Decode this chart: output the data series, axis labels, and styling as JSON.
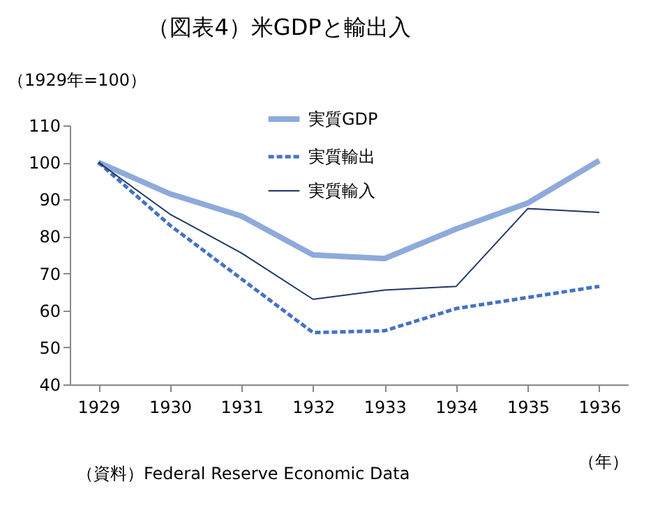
{
  "chart_data": {
    "type": "line",
    "title": "（図表4）米GDPと輸出入",
    "ylabel": "（1929年=100）",
    "xlabel": "（年）",
    "annotations": [
      "（資料）Federal Reserve Economic Data"
    ],
    "categories": [
      "1929",
      "1930",
      "1931",
      "1932",
      "1933",
      "1934",
      "1935",
      "1936"
    ],
    "series": [
      {
        "name": "実質GDP",
        "color": "#8eaadb",
        "line_style": "solid",
        "values": [
          100,
          91.5,
          85.5,
          75,
          74,
          82,
          89,
          100.5
        ]
      },
      {
        "name": "実質輸出",
        "color": "#4472c4",
        "line_style": "dashed",
        "values": [
          100,
          83,
          68.5,
          54,
          54.5,
          60.5,
          63.5,
          66.5
        ]
      },
      {
        "name": "実質輸入",
        "color": "#1f3864",
        "line_style": "solid",
        "values": [
          100,
          86,
          75.5,
          63,
          65.5,
          66.5,
          87.5,
          86.5
        ]
      }
    ],
    "ylim": [
      40,
      110
    ],
    "yticks": [
      40,
      50,
      60,
      70,
      80,
      90,
      100,
      110
    ],
    "grid": false,
    "legend": "top"
  }
}
